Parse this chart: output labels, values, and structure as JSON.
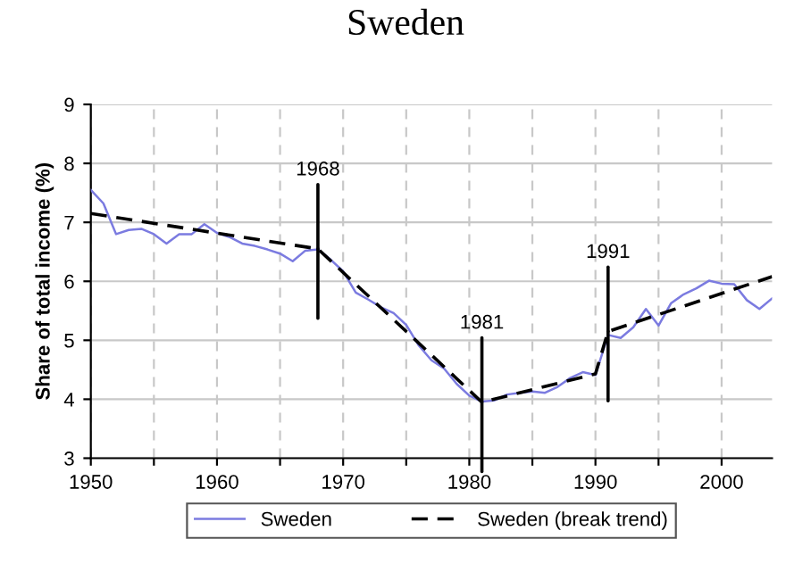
{
  "chart_data": {
    "type": "line",
    "title": "Sweden",
    "ylabel": "Share of total income (%)",
    "xlim": [
      1950,
      2004
    ],
    "ylim": [
      3,
      9
    ],
    "xticks": [
      1950,
      {
        "value": 1955,
        "label": null
      },
      1960,
      {
        "value": 1965,
        "label": null
      },
      1970,
      {
        "value": 1975,
        "label": null
      },
      1980,
      {
        "value": 1985,
        "label": null
      },
      1990,
      {
        "value": 1995,
        "label": null
      },
      2000
    ],
    "yticks": [
      3,
      4,
      5,
      6,
      7,
      8,
      9
    ],
    "grid": true,
    "legend": "bottom",
    "series": [
      {
        "name": "Sweden",
        "color": "#7b7be0",
        "line_style": "solid",
        "x": [
          1950,
          1951,
          1952,
          1953,
          1954,
          1955,
          1956,
          1957,
          1958,
          1959,
          1960,
          1961,
          1962,
          1963,
          1964,
          1965,
          1966,
          1967,
          1968,
          1969,
          1970,
          1971,
          1972,
          1973,
          1974,
          1975,
          1976,
          1977,
          1978,
          1979,
          1980,
          1981,
          1982,
          1983,
          1984,
          1985,
          1986,
          1987,
          1988,
          1989,
          1990,
          1991,
          1992,
          1993,
          1994,
          1995,
          1996,
          1997,
          1998,
          1999,
          2000,
          2001,
          2002,
          2003,
          2004
        ],
        "values": [
          7.55,
          7.32,
          6.8,
          6.87,
          6.89,
          6.8,
          6.64,
          6.8,
          6.8,
          6.97,
          6.82,
          6.75,
          6.64,
          6.6,
          6.54,
          6.47,
          6.34,
          6.52,
          6.54,
          6.37,
          6.17,
          5.81,
          5.69,
          5.56,
          5.46,
          5.26,
          4.91,
          4.66,
          4.52,
          4.26,
          4.06,
          3.96,
          3.98,
          4.08,
          4.11,
          4.13,
          4.11,
          4.21,
          4.36,
          4.46,
          4.41,
          5.09,
          5.04,
          5.22,
          5.53,
          5.25,
          5.63,
          5.78,
          5.88,
          6.01,
          5.96,
          5.95,
          5.68,
          5.53,
          5.71
        ]
      },
      {
        "name": "Sweden (break trend)",
        "color": "#000000",
        "line_style": "dashed",
        "x": [
          1950,
          1968,
          1981,
          1990,
          1991,
          2004
        ],
        "values": [
          7.15,
          6.55,
          3.95,
          4.43,
          5.15,
          6.08
        ]
      }
    ],
    "annotations": [
      {
        "text": "1968",
        "x": 1968,
        "y": 6.55
      },
      {
        "text": "1981",
        "x": 1981,
        "y": 3.95
      },
      {
        "text": "1991",
        "x": 1991,
        "y": 5.15
      }
    ]
  }
}
